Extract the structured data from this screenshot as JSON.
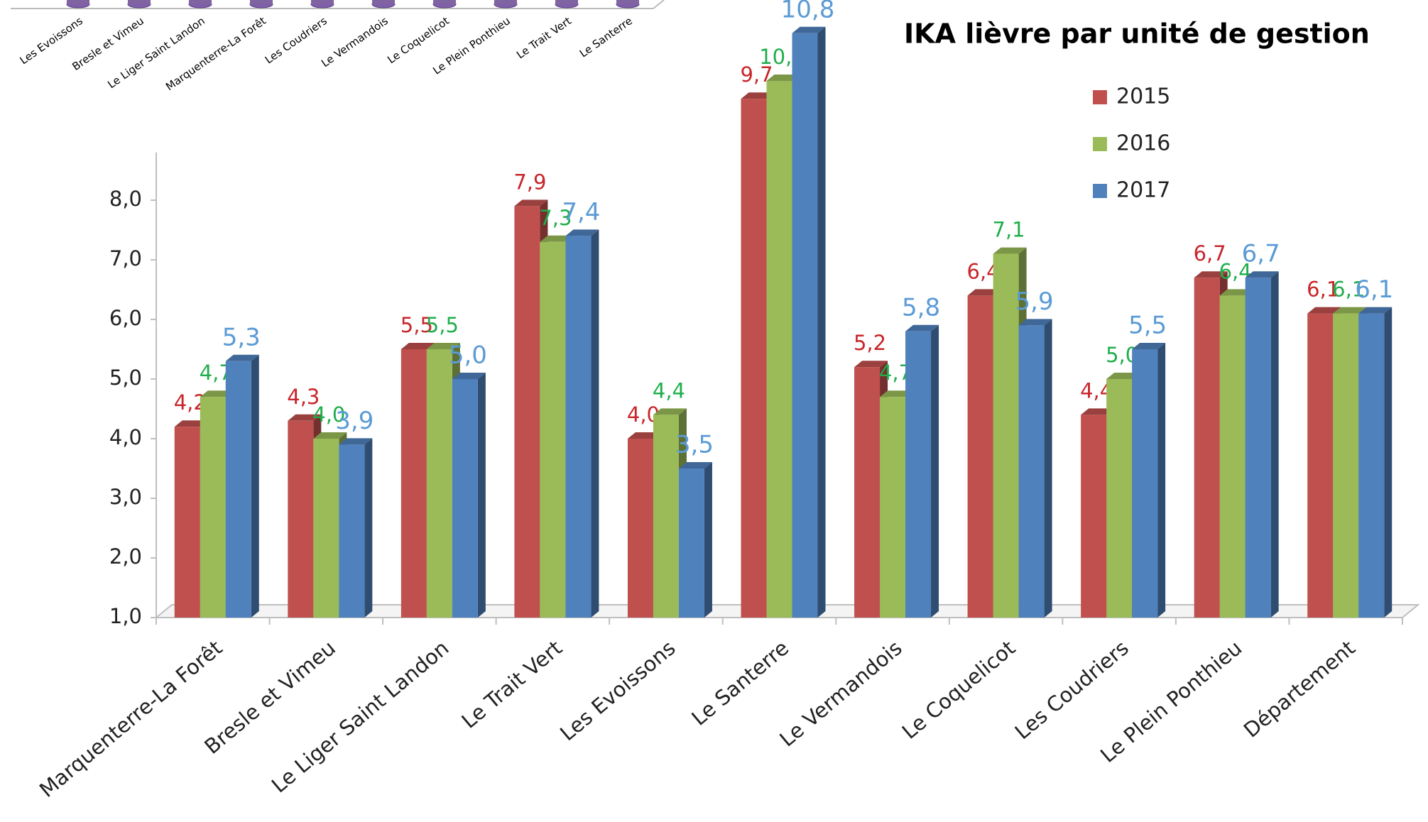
{
  "chart_data": {
    "type": "bar3d",
    "title": "IKA lièvre par unité de gestion",
    "categories": [
      "Marquenterre-La Forêt",
      "Bresle et Vimeu",
      "Le Liger Saint Landon",
      "Le Trait Vert",
      "Les Evoissons",
      "Le Santerre",
      "Le Vermandois",
      "Le Coquelicot",
      "Les Coudriers",
      "Le Plein Ponthieu",
      "Département"
    ],
    "series": [
      {
        "name": "2015",
        "color": "#c0504d",
        "label_color": "#c8262b",
        "values": [
          4.2,
          4.3,
          5.5,
          7.9,
          4.0,
          9.7,
          5.2,
          6.4,
          4.4,
          6.7,
          6.1
        ],
        "value_labels": [
          "4,2",
          "4,3",
          "5,5",
          "7,9",
          "4,0",
          "9,7",
          "5,2",
          "6,4",
          "4,4",
          "6,7",
          "6,1"
        ]
      },
      {
        "name": "2016",
        "color": "#9bbb59",
        "label_color": "#1fae4b",
        "values": [
          4.7,
          4.0,
          5.5,
          7.3,
          4.4,
          10.0,
          4.7,
          7.1,
          5.0,
          6.4,
          6.1
        ],
        "value_labels": [
          "4,7",
          "4,0",
          "5,5",
          "7,3",
          "4,4",
          "10,0",
          "4,7",
          "7,1",
          "5,0",
          "6,4",
          "6,1"
        ]
      },
      {
        "name": "2017",
        "color": "#4f81bd",
        "label_color": "#5b9bd5",
        "values": [
          5.3,
          3.9,
          5.0,
          7.4,
          3.5,
          10.8,
          5.8,
          5.9,
          5.5,
          6.7,
          6.1
        ],
        "value_labels": [
          "5,3",
          "3,9",
          "5,0",
          "7,4",
          "3,5",
          "10,8",
          "5,8",
          "5,9",
          "5,5",
          "6,7",
          "6,1"
        ]
      }
    ],
    "ylim": [
      1,
      11
    ],
    "yticks": [
      {
        "value": 1,
        "label": "1,0"
      },
      {
        "value": 2,
        "label": "2,0"
      },
      {
        "value": 3,
        "label": "3,0"
      },
      {
        "value": 4,
        "label": "4,0"
      },
      {
        "value": 5,
        "label": "5,0"
      },
      {
        "value": 6,
        "label": "6,0"
      },
      {
        "value": 7,
        "label": "7,0"
      },
      {
        "value": 8,
        "label": "8,0"
      }
    ],
    "legend": "upper right"
  },
  "inset_labels": [
    "Les Evoissons",
    "Bresle et Vimeu",
    "Le Liger Saint Landon",
    "Marquenterre-La Forêt",
    "Les Coudriers",
    "Le Vermandois",
    "Le Coquelicot",
    "Le Plein Ponthieu",
    "Le Trait Vert",
    "Le Santerre"
  ]
}
